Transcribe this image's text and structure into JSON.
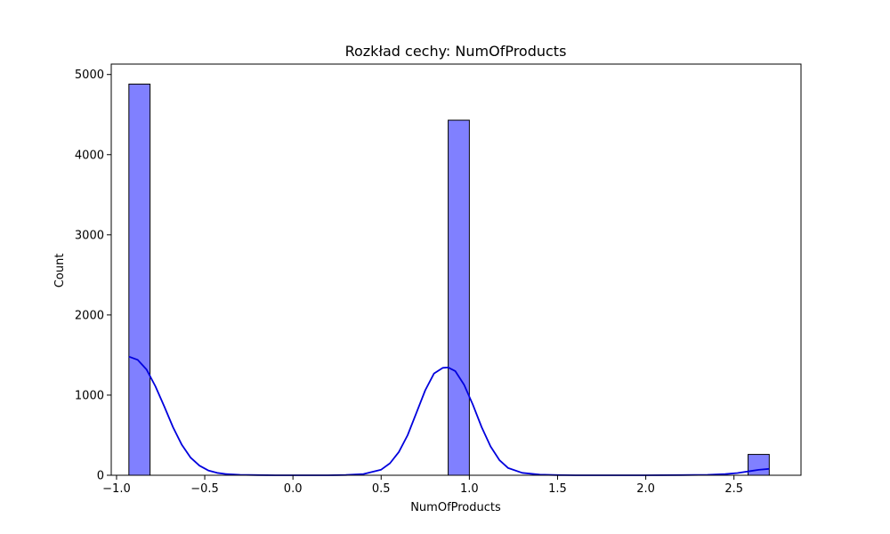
{
  "chart_data": {
    "type": "bar",
    "title": "Rozkład cechy: NumOfProducts",
    "xlabel": "NumOfProducts",
    "ylabel": "Count",
    "xlim": [
      -1.03,
      2.88
    ],
    "ylim": [
      0,
      5130
    ],
    "xticks": [
      -1.0,
      -0.5,
      0.0,
      0.5,
      1.0,
      1.5,
      2.0,
      2.5
    ],
    "xtick_labels": [
      "−1.0",
      "−0.5",
      "0.0",
      "0.5",
      "1.0",
      "1.5",
      "2.0",
      "2.5"
    ],
    "yticks": [
      0,
      1000,
      2000,
      3000,
      4000,
      5000
    ],
    "ytick_labels": [
      "0",
      "1000",
      "2000",
      "3000",
      "4000",
      "5000"
    ],
    "bins": [
      {
        "x0": -0.93,
        "x1": -0.81,
        "count": 4880
      },
      {
        "x0": 0.88,
        "x1": 1.0,
        "count": 4430
      },
      {
        "x0": 2.58,
        "x1": 2.7,
        "count": 260
      }
    ],
    "kde": {
      "x": [
        -0.93,
        -0.88,
        -0.83,
        -0.78,
        -0.73,
        -0.68,
        -0.63,
        -0.58,
        -0.53,
        -0.48,
        -0.43,
        -0.38,
        -0.3,
        -0.2,
        -0.1,
        0.0,
        0.1,
        0.2,
        0.3,
        0.4,
        0.5,
        0.55,
        0.6,
        0.65,
        0.7,
        0.75,
        0.8,
        0.85,
        0.88,
        0.92,
        0.97,
        1.02,
        1.07,
        1.12,
        1.17,
        1.22,
        1.3,
        1.4,
        1.5,
        1.6,
        1.8,
        2.0,
        2.2,
        2.35,
        2.45,
        2.52,
        2.58,
        2.64,
        2.7
      ],
      "y": [
        1480,
        1440,
        1320,
        1110,
        860,
        600,
        380,
        220,
        120,
        60,
        30,
        15,
        5,
        2,
        0,
        0,
        0,
        0,
        3,
        15,
        70,
        150,
        290,
        500,
        780,
        1060,
        1270,
        1340,
        1345,
        1300,
        1130,
        880,
        600,
        360,
        190,
        90,
        30,
        8,
        2,
        0,
        0,
        0,
        2,
        6,
        14,
        28,
        48,
        68,
        80
      ]
    },
    "colors": {
      "bar_fill": "#8080ff",
      "bar_edge": "#000000",
      "kde_line": "#0000dd"
    },
    "grid": false,
    "legend": "none"
  }
}
